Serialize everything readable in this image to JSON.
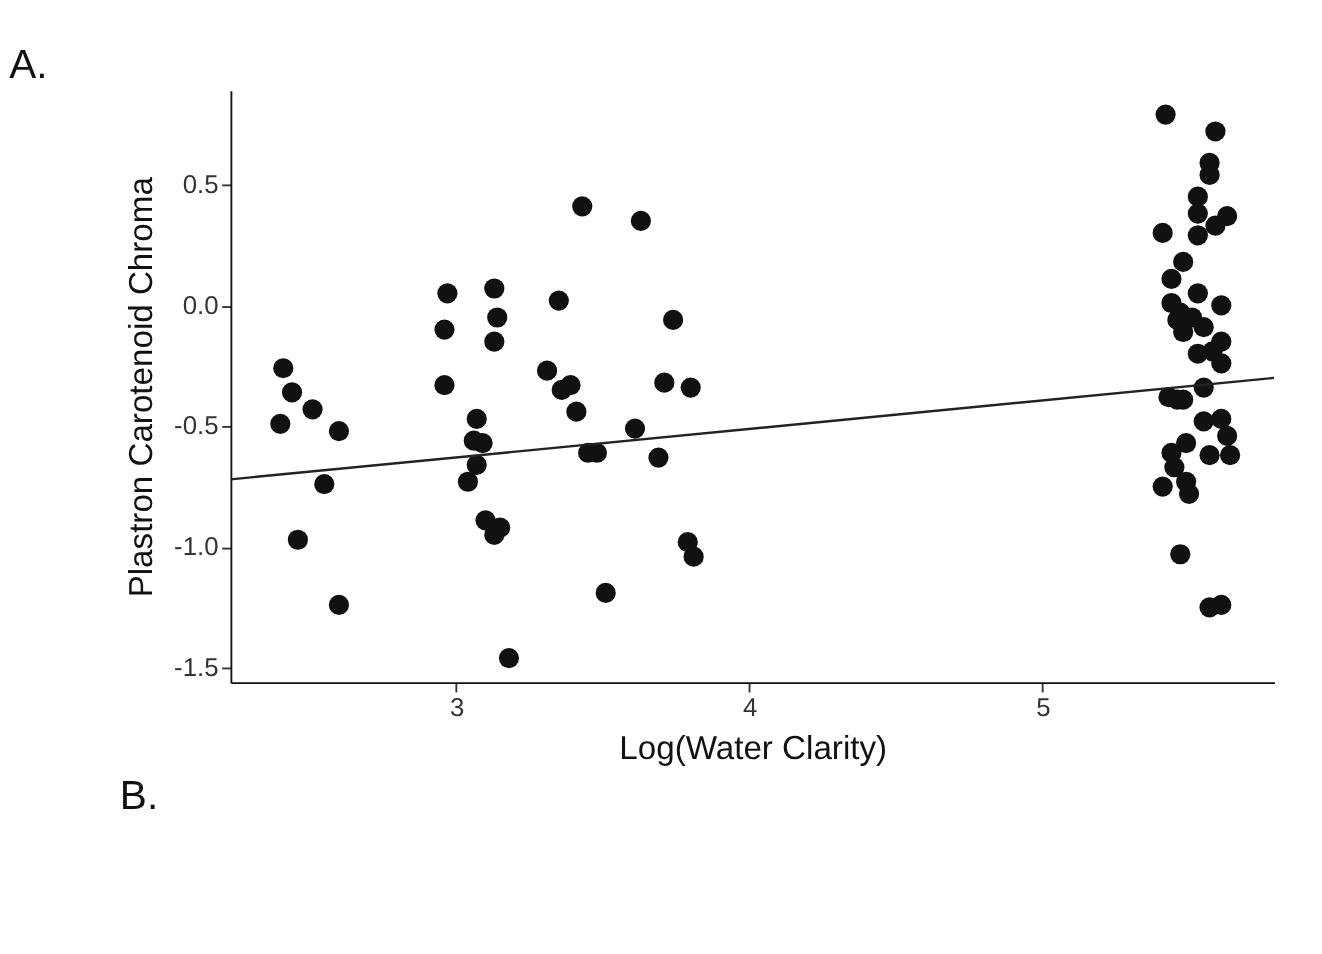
{
  "chart_data": {
    "type": "scatter",
    "title": "A.",
    "xlabel": "Log(Water Clarity)",
    "ylabel": "Plastron Carotenoid Chroma",
    "annotations": [
      "B."
    ],
    "xlim": [
      2.23,
      5.79
    ],
    "ylim": [
      -1.56,
      0.89
    ],
    "xticks": [
      3,
      4,
      5
    ],
    "yticks": [
      {
        "value": -1.5,
        "label": "-1.5"
      },
      {
        "value": -1.0,
        "label": "-1.0"
      },
      {
        "value": -0.5,
        "label": "-0.5"
      },
      {
        "value": 0.0,
        "label": "0.0"
      },
      {
        "value": 0.5,
        "label": "0.5"
      }
    ],
    "grid": false,
    "marker": "circle",
    "series": [
      {
        "color": "#111111",
        "type": "scatter",
        "x": [
          2.41,
          2.44,
          2.51,
          2.4,
          2.6,
          2.55,
          2.46,
          2.6,
          2.97,
          2.96,
          2.96,
          3.13,
          3.14,
          3.13,
          3.07,
          3.06,
          3.09,
          3.07,
          3.04,
          3.1,
          3.15,
          3.13,
          3.18,
          3.43,
          3.35,
          3.31,
          3.39,
          3.36,
          3.41,
          3.45,
          3.48,
          3.51,
          3.63,
          3.61,
          3.69,
          3.74,
          3.71,
          3.8,
          3.79,
          3.81,
          5.42,
          5.59,
          5.57,
          5.57,
          5.53,
          5.53,
          5.63,
          5.59,
          5.53,
          5.41,
          5.48,
          5.44,
          5.53,
          5.61,
          5.44,
          5.47,
          5.46,
          5.51,
          5.55,
          5.48,
          5.61,
          5.53,
          5.58,
          5.61,
          5.55,
          5.43,
          5.48,
          5.46,
          5.55,
          5.61,
          5.63,
          5.49,
          5.44,
          5.57,
          5.64,
          5.45,
          5.41,
          5.49,
          5.5,
          5.47,
          5.57,
          5.61
        ],
        "values": [
          -0.26,
          -0.36,
          -0.43,
          -0.49,
          -0.52,
          -0.74,
          -0.97,
          -1.24,
          0.05,
          -0.1,
          -0.33,
          0.07,
          -0.05,
          -0.15,
          -0.47,
          -0.56,
          -0.57,
          -0.66,
          -0.73,
          -0.89,
          -0.92,
          -0.95,
          -1.46,
          0.41,
          0.02,
          -0.27,
          -0.33,
          -0.35,
          -0.44,
          -0.61,
          -0.61,
          -1.19,
          0.35,
          -0.51,
          -0.63,
          -0.06,
          -0.32,
          -0.34,
          -0.98,
          -1.04,
          0.79,
          0.72,
          0.59,
          0.54,
          0.45,
          0.38,
          0.37,
          0.33,
          0.29,
          0.3,
          0.18,
          0.11,
          0.05,
          0.0,
          0.01,
          -0.03,
          -0.06,
          -0.05,
          -0.09,
          -0.11,
          -0.15,
          -0.2,
          -0.19,
          -0.24,
          -0.34,
          -0.38,
          -0.39,
          -0.39,
          -0.48,
          -0.47,
          -0.54,
          -0.57,
          -0.61,
          -0.62,
          -0.62,
          -0.67,
          -0.75,
          -0.73,
          -0.78,
          -1.03,
          -1.25,
          -1.24
        ]
      },
      {
        "color": "#222222",
        "type": "line",
        "marker": "none",
        "line_style": "solid",
        "x": [
          2.23,
          5.79
        ],
        "values": [
          -0.72,
          -0.3
        ]
      }
    ]
  }
}
